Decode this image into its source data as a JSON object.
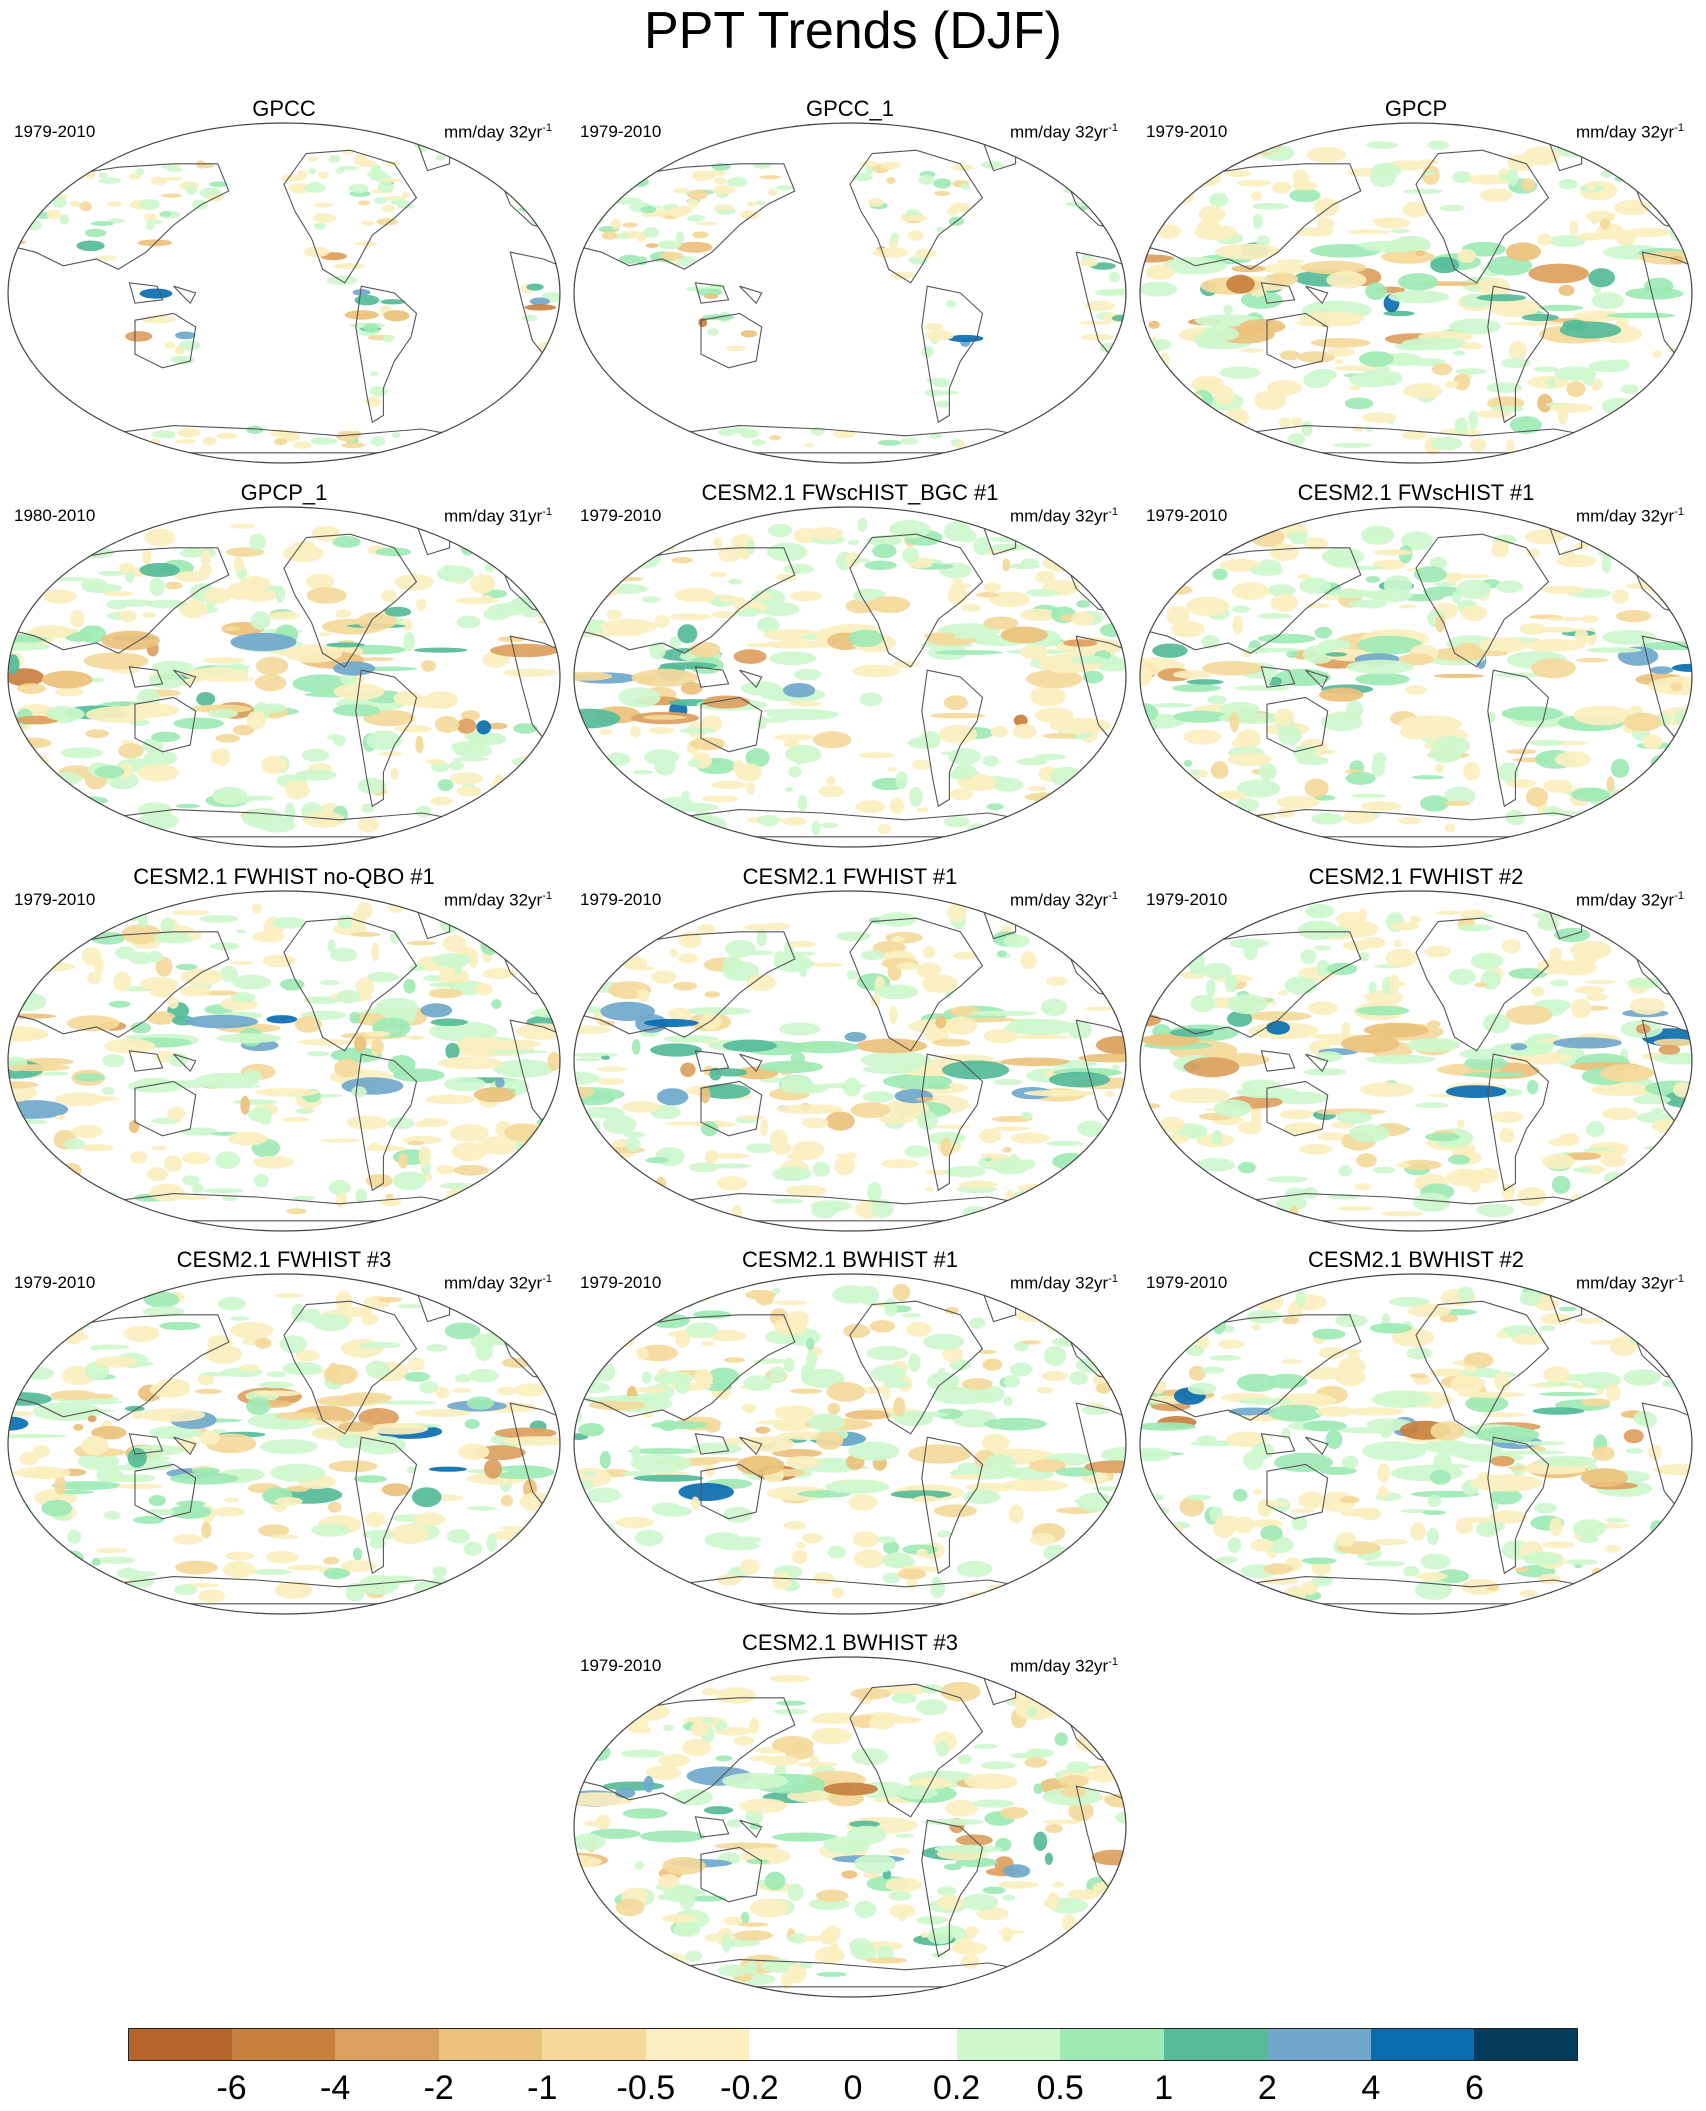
{
  "title": "PPT Trends (DJF)",
  "colors": {
    "land_outline": "#555555",
    "map_border": "#444444"
  },
  "panels": [
    {
      "title": "GPCC",
      "period": "1979-2010",
      "units": "mm/day 32yr",
      "units_exp": "-1",
      "coverage": "land-only"
    },
    {
      "title": "GPCC_1",
      "period": "1979-2010",
      "units": "mm/day 32yr",
      "units_exp": "-1",
      "coverage": "land-only"
    },
    {
      "title": "GPCP",
      "period": "1979-2010",
      "units": "mm/day 32yr",
      "units_exp": "-1",
      "coverage": "global"
    },
    {
      "title": "GPCP_1",
      "period": "1980-2010",
      "units": "mm/day 31yr",
      "units_exp": "-1",
      "coverage": "global"
    },
    {
      "title": "CESM2.1 FWscHIST_BGC #1",
      "period": "1979-2010",
      "units": "mm/day 32yr",
      "units_exp": "-1",
      "coverage": "global"
    },
    {
      "title": "CESM2.1 FWscHIST #1",
      "period": "1979-2010",
      "units": "mm/day 32yr",
      "units_exp": "-1",
      "coverage": "global"
    },
    {
      "title": "CESM2.1 FWHIST no-QBO #1",
      "period": "1979-2010",
      "units": "mm/day 32yr",
      "units_exp": "-1",
      "coverage": "global"
    },
    {
      "title": "CESM2.1 FWHIST #1",
      "period": "1979-2010",
      "units": "mm/day 32yr",
      "units_exp": "-1",
      "coverage": "global"
    },
    {
      "title": "CESM2.1 FWHIST #2",
      "period": "1979-2010",
      "units": "mm/day 32yr",
      "units_exp": "-1",
      "coverage": "global"
    },
    {
      "title": "CESM2.1 FWHIST #3",
      "period": "1979-2010",
      "units": "mm/day 32yr",
      "units_exp": "-1",
      "coverage": "global"
    },
    {
      "title": "CESM2.1 BWHIST #1",
      "period": "1979-2010",
      "units": "mm/day 32yr",
      "units_exp": "-1",
      "coverage": "global"
    },
    {
      "title": "CESM2.1 BWHIST #2",
      "period": "1979-2010",
      "units": "mm/day 32yr",
      "units_exp": "-1",
      "coverage": "global"
    },
    {
      "title": "CESM2.1 BWHIST #3",
      "period": "1979-2010",
      "units": "mm/day 32yr",
      "units_exp": "-1",
      "coverage": "global"
    }
  ],
  "colorbar": {
    "colors": [
      "#b5652a",
      "#c97f3f",
      "#dca05e",
      "#ecc17c",
      "#f4d99a",
      "#fbefbf",
      "#ffffff",
      "#ffffff",
      "#cdf7cc",
      "#9ee9b4",
      "#55bb99",
      "#6fa8cc",
      "#0a6db0",
      "#053c5e"
    ],
    "labels": [
      "-6",
      "-4",
      "-2",
      "-1",
      "-0.5",
      "-0.2",
      "0",
      "0.2",
      "0.5",
      "1",
      "2",
      "4",
      "6"
    ]
  }
}
